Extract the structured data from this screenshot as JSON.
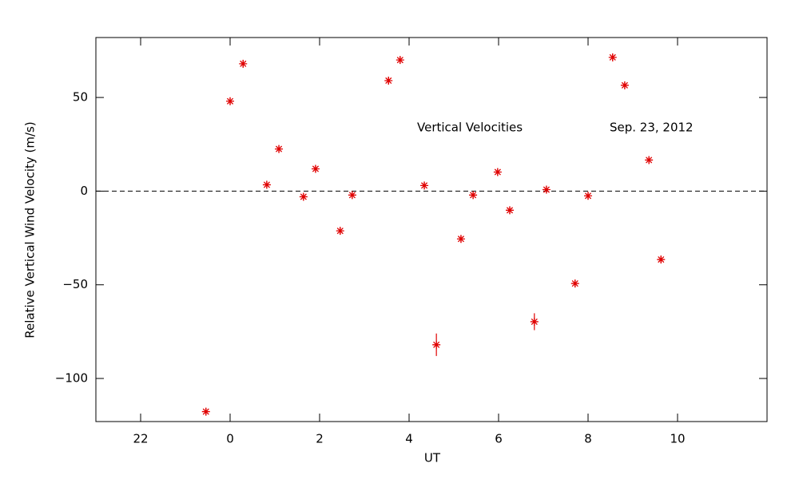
{
  "chart_data": {
    "type": "scatter",
    "xlabel": "UT",
    "ylabel": "Relative Vertical Wind Velocity (m/s)",
    "annotations": [
      "Vertical Velocities",
      "Sep. 23, 2012"
    ],
    "color": "#e00000",
    "xlim": [
      -3,
      12
    ],
    "ylim": [
      -123,
      82
    ],
    "xticks": [
      {
        "value": -2,
        "label": "22"
      },
      0,
      2,
      4,
      6,
      8,
      10
    ],
    "yticks": [
      {
        "value": -100,
        "label": "−100"
      },
      {
        "value": -50,
        "label": "−50"
      },
      0,
      50
    ],
    "hline": 0,
    "x": [
      -0.54,
      0.0,
      0.29,
      0.82,
      1.09,
      1.64,
      1.91,
      2.46,
      2.73,
      3.54,
      3.8,
      4.34,
      4.61,
      5.16,
      5.43,
      5.98,
      6.25,
      6.8,
      7.07,
      7.71,
      8.0,
      8.55,
      8.82,
      9.36,
      9.63
    ],
    "values": [
      -117.7,
      48,
      68,
      3.4,
      22.5,
      -3,
      11.9,
      -21.2,
      -2.1,
      59,
      70,
      3,
      -82,
      -25.5,
      -2.1,
      10.2,
      -10.2,
      -69.7,
      0.8,
      -49.3,
      -2.5,
      71.4,
      56.5,
      16.6,
      -36.5
    ],
    "errors": [
      2,
      2,
      2,
      2,
      2,
      2,
      2,
      2,
      2,
      2,
      2,
      2,
      6,
      2,
      2,
      2,
      2,
      4.5,
      2,
      2,
      2,
      2,
      2,
      2,
      2
    ]
  }
}
